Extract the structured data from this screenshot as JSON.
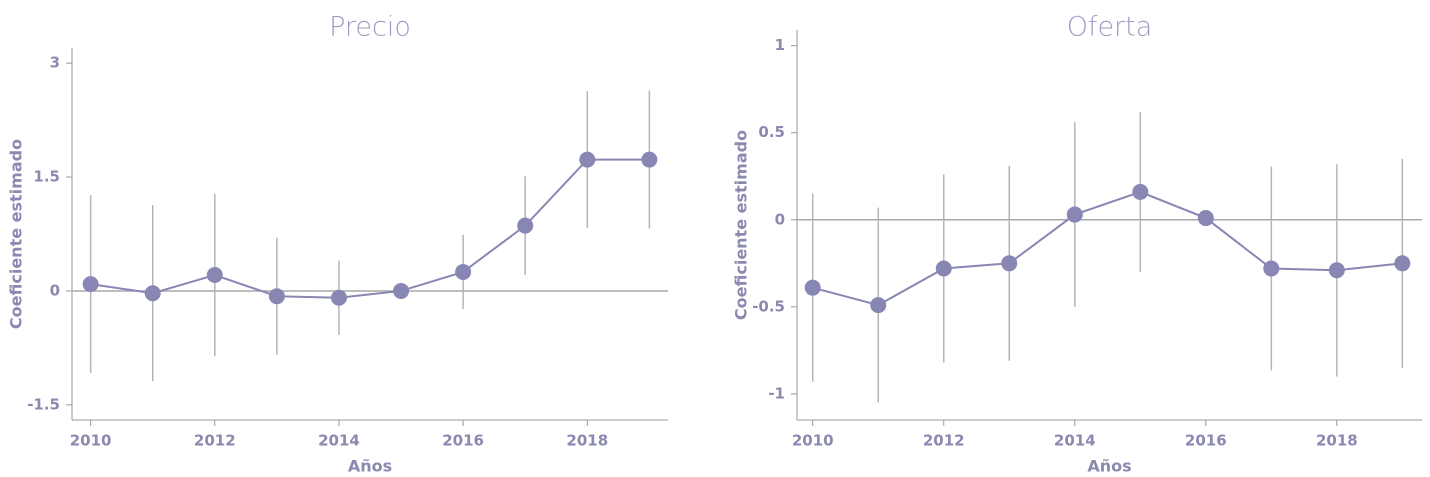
{
  "chart_data": [
    {
      "type": "line",
      "title": "Precio",
      "xlabel": "Años",
      "ylabel": "Coeficiente estimado",
      "x": [
        2010,
        2011,
        2012,
        2013,
        2014,
        2015,
        2016,
        2017,
        2018,
        2019
      ],
      "values": [
        0.09,
        -0.03,
        0.21,
        -0.07,
        -0.09,
        0.0,
        0.25,
        0.86,
        1.73,
        1.73
      ],
      "errors": [
        1.17,
        1.16,
        1.07,
        0.77,
        0.49,
        0,
        0.49,
        0.65,
        0.9,
        0.91
      ],
      "color": "#8886b3",
      "error_color": "#b5b5b5",
      "xlim": [
        2009.7,
        2019.3
      ],
      "xticks": [
        2010,
        2012,
        2014,
        2016,
        2018
      ],
      "ylim": [
        -1.7,
        3.2
      ],
      "yticks": [
        -1.5,
        0,
        1.5,
        3
      ],
      "reference_line": 0
    },
    {
      "type": "line",
      "title": "Oferta",
      "xlabel": "Años",
      "ylabel": "Coeficiente estimado",
      "x": [
        2010,
        2011,
        2012,
        2013,
        2014,
        2015,
        2016,
        2017,
        2018,
        2019
      ],
      "values": [
        -0.39,
        -0.49,
        -0.28,
        -0.25,
        0.03,
        0.16,
        0.01,
        -0.28,
        -0.29,
        -0.25
      ],
      "errors": [
        0.54,
        0.56,
        0.54,
        0.56,
        0.53,
        0.46,
        0,
        0.585,
        0.61,
        0.6
      ],
      "color": "#8886b3",
      "error_color": "#b5b5b5",
      "xlim": [
        2009.76,
        2019.3
      ],
      "xticks": [
        2010,
        2012,
        2014,
        2016,
        2018
      ],
      "ylim": [
        -1.15,
        1.09
      ],
      "yticks": [
        -1,
        -0.5,
        0,
        0.5,
        1
      ],
      "reference_line": 0
    }
  ]
}
